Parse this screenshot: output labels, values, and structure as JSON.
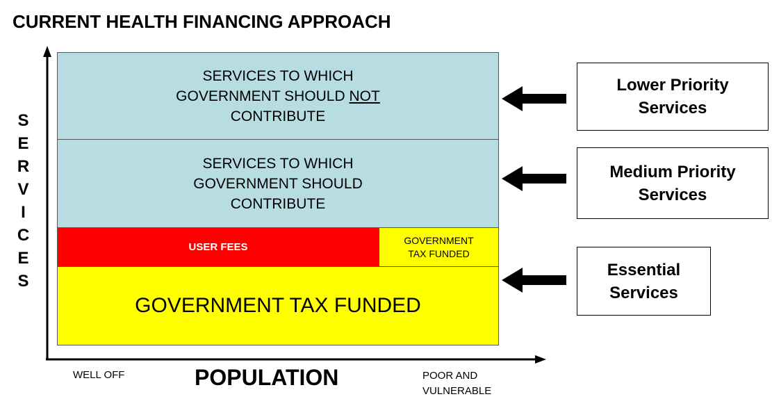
{
  "title": "CURRENT HEALTH FINANCING APPROACH",
  "y_axis_label": "SERVICES",
  "x_axis": {
    "label": "POPULATION",
    "left": "WELL OFF",
    "right": [
      "POOR AND",
      "VULNERABLE"
    ]
  },
  "blocks": {
    "not_contribute": {
      "lines": [
        "SERVICES TO WHICH",
        {
          "text": "GOVERNMENT SHOULD",
          "underlined": "NOT"
        },
        "CONTRIBUTE"
      ]
    },
    "contribute": {
      "lines": [
        "SERVICES TO WHICH",
        "GOVERNMENT SHOULD",
        "CONTRIBUTE"
      ]
    },
    "user_fees": "USER FEES",
    "small_tax": [
      "GOVERNMENT",
      "TAX FUNDED"
    ],
    "tax_funded": "GOVERNMENT TAX FUNDED"
  },
  "priorities": [
    {
      "lines": [
        "Lower Priority",
        "Services"
      ]
    },
    {
      "lines": [
        "Medium Priority",
        "Services"
      ]
    },
    {
      "lines": [
        "Essential",
        "Services"
      ]
    }
  ]
}
